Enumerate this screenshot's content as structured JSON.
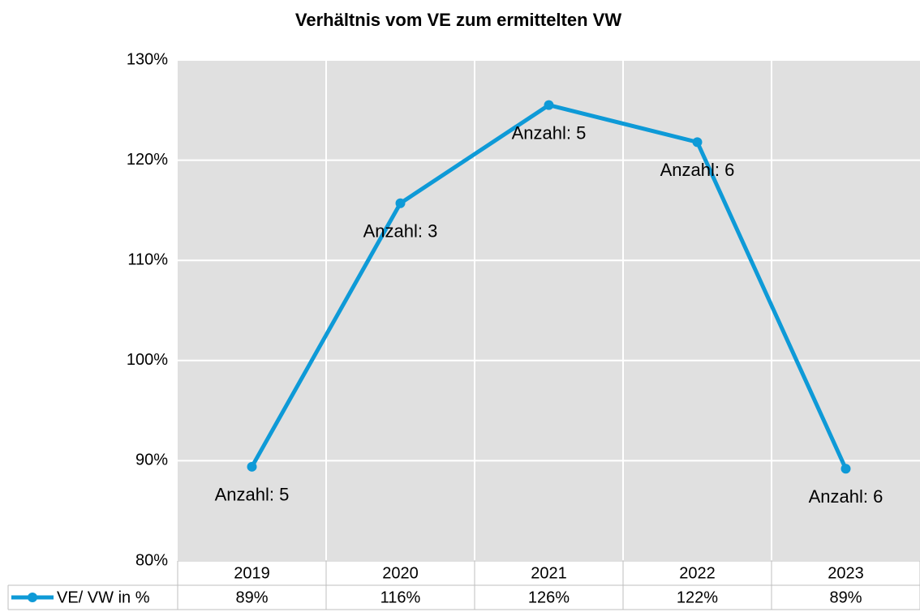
{
  "chart_data": {
    "type": "line",
    "title": "Verhältnis vom VE zum ermittelten VW",
    "categories": [
      "2019",
      "2020",
      "2021",
      "2022",
      "2023"
    ],
    "series": [
      {
        "name": "VE/ VW in %",
        "color": "#0e9ad7",
        "values": [
          89.4,
          115.7,
          125.5,
          121.8,
          89.2
        ],
        "value_labels": [
          "89%",
          "116%",
          "126%",
          "122%",
          "89%"
        ],
        "annotations": [
          "Anzahl: 5",
          "Anzahl: 3",
          "Anzahl: 5",
          "Anzahl: 6",
          "Anzahl: 6"
        ]
      }
    ],
    "ylim": [
      80,
      130
    ],
    "yticks": [
      {
        "value": 80,
        "label": "80%"
      },
      {
        "value": 90,
        "label": "90%"
      },
      {
        "value": 100,
        "label": "100%"
      },
      {
        "value": 110,
        "label": "110%"
      },
      {
        "value": 120,
        "label": "120%"
      },
      {
        "value": 130,
        "label": "130%"
      }
    ],
    "grid": true,
    "data_table": true
  }
}
